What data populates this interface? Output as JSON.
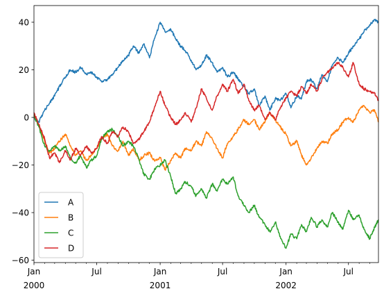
{
  "chart_data": {
    "type": "line",
    "title": "",
    "xlabel": "",
    "ylabel": "",
    "xlim": [
      "2000-01-01",
      "2002-09-26"
    ],
    "ylim": [
      -61,
      47
    ],
    "grid": false,
    "legend_position": "lower-left",
    "yticks": [
      40,
      20,
      0,
      -20,
      -40,
      -60
    ],
    "ytick_labels": [
      "40",
      "20",
      "0",
      "−20",
      "−40",
      "−60"
    ],
    "xticks": [
      {
        "date": "2000-01-01",
        "line1": "Jan",
        "line2": "2000"
      },
      {
        "date": "2000-07-01",
        "line1": "Jul",
        "line2": ""
      },
      {
        "date": "2001-01-01",
        "line1": "Jan",
        "line2": "2001"
      },
      {
        "date": "2001-07-01",
        "line1": "Jul",
        "line2": ""
      },
      {
        "date": "2002-01-01",
        "line1": "Jan",
        "line2": "2002"
      },
      {
        "date": "2002-07-01",
        "line1": "Jul",
        "line2": ""
      }
    ],
    "series": [
      {
        "name": "A",
        "color": "#1f77b4",
        "points": [
          [
            "2000-01-01",
            0
          ],
          [
            "2000-01-15",
            -2
          ],
          [
            "2000-02-01",
            3
          ],
          [
            "2000-02-15",
            6
          ],
          [
            "2000-03-01",
            9
          ],
          [
            "2000-03-15",
            13
          ],
          [
            "2000-04-01",
            17
          ],
          [
            "2000-04-15",
            20
          ],
          [
            "2000-05-01",
            19
          ],
          [
            "2000-05-15",
            21
          ],
          [
            "2000-06-01",
            18
          ],
          [
            "2000-06-15",
            19
          ],
          [
            "2000-07-01",
            17
          ],
          [
            "2000-07-15",
            15
          ],
          [
            "2000-08-01",
            16
          ],
          [
            "2000-08-15",
            18
          ],
          [
            "2000-09-01",
            21
          ],
          [
            "2000-09-15",
            24
          ],
          [
            "2000-10-01",
            26
          ],
          [
            "2000-10-15",
            30
          ],
          [
            "2000-11-01",
            27
          ],
          [
            "2000-11-15",
            31
          ],
          [
            "2000-12-01",
            25
          ],
          [
            "2000-12-15",
            33
          ],
          [
            "2001-01-01",
            40
          ],
          [
            "2001-01-15",
            36
          ],
          [
            "2001-02-01",
            37
          ],
          [
            "2001-02-15",
            33
          ],
          [
            "2001-03-01",
            30
          ],
          [
            "2001-03-15",
            28
          ],
          [
            "2001-04-01",
            24
          ],
          [
            "2001-04-15",
            20
          ],
          [
            "2001-05-01",
            22
          ],
          [
            "2001-05-15",
            26
          ],
          [
            "2001-06-01",
            23
          ],
          [
            "2001-06-15",
            19
          ],
          [
            "2001-07-01",
            21
          ],
          [
            "2001-07-15",
            17
          ],
          [
            "2001-08-01",
            19
          ],
          [
            "2001-08-15",
            16
          ],
          [
            "2001-09-01",
            13
          ],
          [
            "2001-09-15",
            10
          ],
          [
            "2001-10-01",
            12
          ],
          [
            "2001-10-15",
            5
          ],
          [
            "2001-11-01",
            9
          ],
          [
            "2001-11-15",
            3
          ],
          [
            "2001-12-01",
            8
          ],
          [
            "2001-12-15",
            7
          ],
          [
            "2002-01-01",
            10
          ],
          [
            "2002-01-15",
            4
          ],
          [
            "2002-02-01",
            9
          ],
          [
            "2002-02-15",
            8
          ],
          [
            "2002-03-01",
            15
          ],
          [
            "2002-03-15",
            16
          ],
          [
            "2002-04-01",
            12
          ],
          [
            "2002-04-15",
            18
          ],
          [
            "2002-05-01",
            15
          ],
          [
            "2002-05-15",
            22
          ],
          [
            "2002-06-01",
            25
          ],
          [
            "2002-06-15",
            23
          ],
          [
            "2002-07-01",
            27
          ],
          [
            "2002-07-15",
            30
          ],
          [
            "2002-08-01",
            33
          ],
          [
            "2002-08-15",
            36
          ],
          [
            "2002-09-01",
            39
          ],
          [
            "2002-09-15",
            41
          ],
          [
            "2002-09-26",
            40
          ]
        ]
      },
      {
        "name": "B",
        "color": "#ff7f0e",
        "points": [
          [
            "2000-01-01",
            1
          ],
          [
            "2000-01-15",
            -3
          ],
          [
            "2000-02-01",
            -10
          ],
          [
            "2000-02-15",
            -15
          ],
          [
            "2000-03-01",
            -13
          ],
          [
            "2000-03-15",
            -10
          ],
          [
            "2000-04-01",
            -7
          ],
          [
            "2000-04-15",
            -12
          ],
          [
            "2000-05-01",
            -16
          ],
          [
            "2000-05-15",
            -14
          ],
          [
            "2000-06-01",
            -18
          ],
          [
            "2000-06-15",
            -16
          ],
          [
            "2000-07-01",
            -13
          ],
          [
            "2000-07-15",
            -9
          ],
          [
            "2000-08-01",
            -7
          ],
          [
            "2000-08-15",
            -12
          ],
          [
            "2000-09-01",
            -14
          ],
          [
            "2000-09-15",
            -10
          ],
          [
            "2000-10-01",
            -16
          ],
          [
            "2000-10-15",
            -13
          ],
          [
            "2000-11-01",
            -18
          ],
          [
            "2000-11-15",
            -16
          ],
          [
            "2000-12-01",
            -15
          ],
          [
            "2000-12-15",
            -18
          ],
          [
            "2001-01-01",
            -17
          ],
          [
            "2001-01-15",
            -22
          ],
          [
            "2001-02-01",
            -18
          ],
          [
            "2001-02-15",
            -15
          ],
          [
            "2001-03-01",
            -17
          ],
          [
            "2001-03-15",
            -13
          ],
          [
            "2001-04-01",
            -14
          ],
          [
            "2001-04-15",
            -10
          ],
          [
            "2001-05-01",
            -12
          ],
          [
            "2001-05-15",
            -6
          ],
          [
            "2001-06-01",
            -9
          ],
          [
            "2001-06-15",
            -13
          ],
          [
            "2001-07-01",
            -17
          ],
          [
            "2001-07-15",
            -11
          ],
          [
            "2001-08-01",
            -8
          ],
          [
            "2001-08-15",
            -5
          ],
          [
            "2001-09-01",
            -1
          ],
          [
            "2001-09-15",
            -3
          ],
          [
            "2001-10-01",
            -1
          ],
          [
            "2001-10-15",
            -5
          ],
          [
            "2001-11-01",
            -2
          ],
          [
            "2001-11-15",
            2
          ],
          [
            "2001-12-01",
            -1
          ],
          [
            "2001-12-15",
            -4
          ],
          [
            "2002-01-01",
            -7
          ],
          [
            "2002-01-15",
            -12
          ],
          [
            "2002-02-01",
            -10
          ],
          [
            "2002-02-15",
            -16
          ],
          [
            "2002-03-01",
            -20
          ],
          [
            "2002-03-15",
            -17
          ],
          [
            "2002-04-01",
            -13
          ],
          [
            "2002-04-15",
            -10
          ],
          [
            "2002-05-01",
            -11
          ],
          [
            "2002-05-15",
            -7
          ],
          [
            "2002-06-01",
            -5
          ],
          [
            "2002-06-15",
            -2
          ],
          [
            "2002-07-01",
            0
          ],
          [
            "2002-07-15",
            -2
          ],
          [
            "2002-08-01",
            3
          ],
          [
            "2002-08-15",
            5
          ],
          [
            "2002-09-01",
            2
          ],
          [
            "2002-09-15",
            3
          ],
          [
            "2002-09-26",
            -2
          ]
        ]
      },
      {
        "name": "C",
        "color": "#2ca02c",
        "points": [
          [
            "2000-01-01",
            1
          ],
          [
            "2000-01-15",
            -4
          ],
          [
            "2000-02-01",
            -12
          ],
          [
            "2000-02-15",
            -14
          ],
          [
            "2000-03-01",
            -12
          ],
          [
            "2000-03-15",
            -14
          ],
          [
            "2000-04-01",
            -12
          ],
          [
            "2000-04-15",
            -17
          ],
          [
            "2000-05-01",
            -19
          ],
          [
            "2000-05-15",
            -16
          ],
          [
            "2000-06-01",
            -21
          ],
          [
            "2000-06-15",
            -18
          ],
          [
            "2000-07-01",
            -16
          ],
          [
            "2000-07-15",
            -9
          ],
          [
            "2000-08-01",
            -6
          ],
          [
            "2000-08-15",
            -5
          ],
          [
            "2000-09-01",
            -8
          ],
          [
            "2000-09-15",
            -12
          ],
          [
            "2000-10-01",
            -10
          ],
          [
            "2000-10-15",
            -12
          ],
          [
            "2000-11-01",
            -18
          ],
          [
            "2000-11-15",
            -24
          ],
          [
            "2000-12-01",
            -26
          ],
          [
            "2000-12-15",
            -22
          ],
          [
            "2001-01-01",
            -20
          ],
          [
            "2001-01-15",
            -18
          ],
          [
            "2001-02-01",
            -25
          ],
          [
            "2001-02-15",
            -32
          ],
          [
            "2001-03-01",
            -30
          ],
          [
            "2001-03-15",
            -27
          ],
          [
            "2001-04-01",
            -29
          ],
          [
            "2001-04-15",
            -33
          ],
          [
            "2001-05-01",
            -30
          ],
          [
            "2001-05-15",
            -34
          ],
          [
            "2001-06-01",
            -28
          ],
          [
            "2001-06-15",
            -31
          ],
          [
            "2001-07-01",
            -26
          ],
          [
            "2001-07-15",
            -28
          ],
          [
            "2001-08-01",
            -25
          ],
          [
            "2001-08-15",
            -33
          ],
          [
            "2001-09-01",
            -37
          ],
          [
            "2001-09-15",
            -40
          ],
          [
            "2001-10-01",
            -37
          ],
          [
            "2001-10-15",
            -42
          ],
          [
            "2001-11-01",
            -45
          ],
          [
            "2001-11-15",
            -48
          ],
          [
            "2001-12-01",
            -44
          ],
          [
            "2001-12-15",
            -50
          ],
          [
            "2002-01-01",
            -55
          ],
          [
            "2002-01-15",
            -49
          ],
          [
            "2002-02-01",
            -51
          ],
          [
            "2002-02-15",
            -45
          ],
          [
            "2002-03-01",
            -48
          ],
          [
            "2002-03-15",
            -42
          ],
          [
            "2002-04-01",
            -46
          ],
          [
            "2002-04-15",
            -43
          ],
          [
            "2002-05-01",
            -46
          ],
          [
            "2002-05-15",
            -40
          ],
          [
            "2002-06-01",
            -44
          ],
          [
            "2002-06-15",
            -47
          ],
          [
            "2002-07-01",
            -39
          ],
          [
            "2002-07-15",
            -43
          ],
          [
            "2002-08-01",
            -41
          ],
          [
            "2002-08-15",
            -47
          ],
          [
            "2002-09-01",
            -51
          ],
          [
            "2002-09-15",
            -46
          ],
          [
            "2002-09-26",
            -43
          ]
        ]
      },
      {
        "name": "D",
        "color": "#d62728",
        "points": [
          [
            "2000-01-01",
            2
          ],
          [
            "2000-01-15",
            -3
          ],
          [
            "2000-02-01",
            -9
          ],
          [
            "2000-02-15",
            -17
          ],
          [
            "2000-03-01",
            -15
          ],
          [
            "2000-03-15",
            -19
          ],
          [
            "2000-04-01",
            -14
          ],
          [
            "2000-04-15",
            -18
          ],
          [
            "2000-05-01",
            -13
          ],
          [
            "2000-05-15",
            -16
          ],
          [
            "2000-06-01",
            -12
          ],
          [
            "2000-06-15",
            -15
          ],
          [
            "2000-07-01",
            -13
          ],
          [
            "2000-07-15",
            -8
          ],
          [
            "2000-08-01",
            -11
          ],
          [
            "2000-08-15",
            -6
          ],
          [
            "2000-09-01",
            -8
          ],
          [
            "2000-09-15",
            -4
          ],
          [
            "2000-10-01",
            -6
          ],
          [
            "2000-10-15",
            -11
          ],
          [
            "2000-11-01",
            -9
          ],
          [
            "2000-11-15",
            -6
          ],
          [
            "2000-12-01",
            -2
          ],
          [
            "2000-12-15",
            4
          ],
          [
            "2001-01-01",
            11
          ],
          [
            "2001-01-15",
            5
          ],
          [
            "2001-02-01",
            0
          ],
          [
            "2001-02-15",
            -3
          ],
          [
            "2001-03-01",
            -1
          ],
          [
            "2001-03-15",
            2
          ],
          [
            "2001-04-01",
            -2
          ],
          [
            "2001-04-15",
            4
          ],
          [
            "2001-05-01",
            12
          ],
          [
            "2001-05-15",
            8
          ],
          [
            "2001-06-01",
            3
          ],
          [
            "2001-06-15",
            9
          ],
          [
            "2001-07-01",
            14
          ],
          [
            "2001-07-15",
            11
          ],
          [
            "2001-08-01",
            16
          ],
          [
            "2001-08-15",
            10
          ],
          [
            "2001-09-01",
            14
          ],
          [
            "2001-09-15",
            7
          ],
          [
            "2001-10-01",
            3
          ],
          [
            "2001-10-15",
            5
          ],
          [
            "2001-11-01",
            -1
          ],
          [
            "2001-11-15",
            2
          ],
          [
            "2001-12-01",
            -1
          ],
          [
            "2001-12-15",
            4
          ],
          [
            "2002-01-01",
            8
          ],
          [
            "2002-01-15",
            11
          ],
          [
            "2002-02-01",
            9
          ],
          [
            "2002-02-15",
            13
          ],
          [
            "2002-03-01",
            10
          ],
          [
            "2002-03-15",
            14
          ],
          [
            "2002-04-01",
            11
          ],
          [
            "2002-04-15",
            16
          ],
          [
            "2002-05-01",
            19
          ],
          [
            "2002-05-15",
            21
          ],
          [
            "2002-06-01",
            23
          ],
          [
            "2002-06-15",
            21
          ],
          [
            "2002-07-01",
            17
          ],
          [
            "2002-07-15",
            23
          ],
          [
            "2002-08-01",
            14
          ],
          [
            "2002-08-15",
            12
          ],
          [
            "2002-09-01",
            11
          ],
          [
            "2002-09-15",
            10
          ],
          [
            "2002-09-26",
            7
          ]
        ]
      }
    ]
  }
}
